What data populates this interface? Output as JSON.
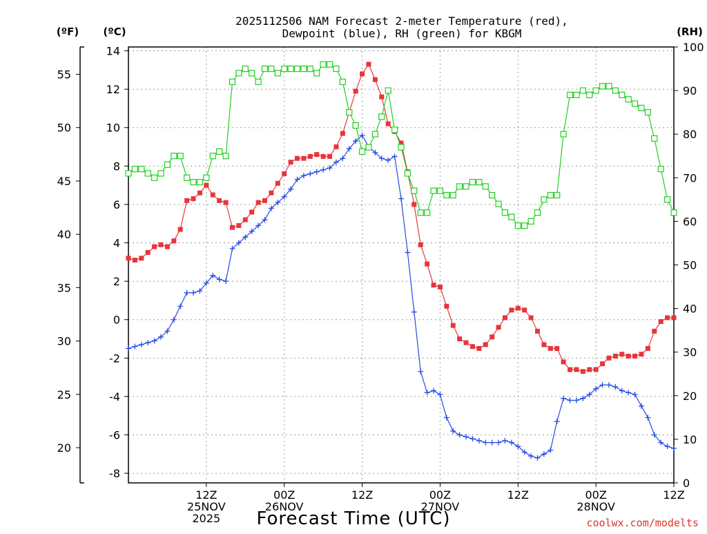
{
  "chart_data": {
    "type": "line",
    "title_line1": "2025112506 NAM Forecast 2-meter Temperature (red),",
    "title_line2": "Dewpoint (blue), RH (green) for KBGM",
    "unit_labels": {
      "fahrenheit": "(ºF)",
      "celsius": "(ºC)",
      "rh": "(RH)"
    },
    "xlabel": "Forecast Time (UTC)",
    "credit": "coolwx.com/modelts",
    "x_start": "2025-11-25 06Z",
    "x_tick_labels": [
      {
        "hour": 12,
        "lines": [
          "12Z",
          "25NOV",
          "2025"
        ]
      },
      {
        "hour": 24,
        "lines": [
          "00Z",
          "26NOV"
        ]
      },
      {
        "hour": 36,
        "lines": [
          "12Z"
        ]
      },
      {
        "hour": 48,
        "lines": [
          "00Z",
          "27NOV"
        ]
      },
      {
        "hour": 60,
        "lines": [
          "12Z"
        ]
      },
      {
        "hour": 72,
        "lines": [
          "00Z",
          "28NOV"
        ]
      },
      {
        "hour": 84,
        "lines": [
          "12Z"
        ]
      }
    ],
    "x_range_hours": [
      0,
      84
    ],
    "y_celsius": {
      "range": [
        -8.5,
        14.2
      ],
      "ticks": [
        -8,
        -6,
        -4,
        -2,
        0,
        2,
        4,
        6,
        8,
        10,
        12,
        14
      ]
    },
    "y_fahrenheit": {
      "ticks": [
        20,
        25,
        30,
        35,
        40,
        45,
        50,
        55
      ]
    },
    "y_rh": {
      "range": [
        0,
        100
      ],
      "ticks": [
        0,
        10,
        20,
        30,
        40,
        50,
        60,
        70,
        80,
        90,
        100
      ]
    },
    "grid": true,
    "series": [
      {
        "name": "Temperature",
        "color": "#e8353a",
        "marker": "filled-square",
        "axis": "celsius",
        "values": [
          3.2,
          3.1,
          3.2,
          3.5,
          3.8,
          3.9,
          3.8,
          4.1,
          4.7,
          6.2,
          6.3,
          6.6,
          7.0,
          6.5,
          6.2,
          6.1,
          4.8,
          4.9,
          5.2,
          5.6,
          6.1,
          6.2,
          6.6,
          7.1,
          7.6,
          8.2,
          8.4,
          8.4,
          8.5,
          8.6,
          8.5,
          8.5,
          9.0,
          9.7,
          10.8,
          11.9,
          12.8,
          13.3,
          12.5,
          11.6,
          10.2,
          9.8,
          9.2,
          7.7,
          6.0,
          3.9,
          2.9,
          1.8,
          1.7,
          0.7,
          -0.3,
          -1.0,
          -1.2,
          -1.4,
          -1.5,
          -1.3,
          -0.9,
          -0.4,
          0.1,
          0.5,
          0.6,
          0.5,
          0.1,
          -0.6,
          -1.3,
          -1.5,
          -1.5,
          -2.2,
          -2.6,
          -2.6,
          -2.7,
          -2.6,
          -2.6,
          -2.3,
          -2.0,
          -1.9,
          -1.8,
          -1.9,
          -1.9,
          -1.8,
          -1.5,
          -0.6,
          -0.1,
          0.1,
          0.1
        ]
      },
      {
        "name": "Dewpoint",
        "color": "#2449e3",
        "marker": "plus",
        "axis": "celsius",
        "values": [
          -1.5,
          -1.4,
          -1.3,
          -1.2,
          -1.1,
          -0.9,
          -0.6,
          0.0,
          0.7,
          1.4,
          1.4,
          1.5,
          1.9,
          2.3,
          2.1,
          2.0,
          3.7,
          4.0,
          4.3,
          4.6,
          4.9,
          5.2,
          5.8,
          6.1,
          6.4,
          6.8,
          7.3,
          7.5,
          7.6,
          7.7,
          7.8,
          7.9,
          8.2,
          8.4,
          8.9,
          9.3,
          9.6,
          9.0,
          8.7,
          8.4,
          8.3,
          8.5,
          6.3,
          3.5,
          0.4,
          -2.7,
          -3.8,
          -3.7,
          -3.9,
          -5.1,
          -5.8,
          -6.0,
          -6.1,
          -6.2,
          -6.3,
          -6.4,
          -6.4,
          -6.4,
          -6.3,
          -6.4,
          -6.6,
          -6.9,
          -7.1,
          -7.2,
          -7.0,
          -6.8,
          -5.3,
          -4.1,
          -4.2,
          -4.2,
          -4.1,
          -3.9,
          -3.6,
          -3.4,
          -3.4,
          -3.5,
          -3.7,
          -3.8,
          -3.9,
          -4.5,
          -5.1,
          -6.0,
          -6.4,
          -6.6,
          -6.7
        ]
      },
      {
        "name": "RH",
        "color": "#1fcf1f",
        "marker": "open-square",
        "axis": "rh",
        "values": [
          71,
          72,
          72,
          71,
          70,
          71,
          73,
          75,
          75,
          70,
          69,
          69,
          70,
          75,
          76,
          75,
          92,
          94,
          95,
          94,
          92,
          95,
          95,
          94,
          95,
          95,
          95,
          95,
          95,
          94,
          96,
          96,
          95,
          92,
          85,
          82,
          76,
          77,
          80,
          84,
          90,
          81,
          77,
          71,
          67,
          62,
          62,
          67,
          67,
          66,
          66,
          68,
          68,
          69,
          69,
          68,
          66,
          64,
          62,
          61,
          59,
          59,
          60,
          62,
          65,
          66,
          66,
          80,
          89,
          89,
          90,
          89,
          90,
          91,
          91,
          90,
          89,
          88,
          87,
          86,
          85,
          79,
          72,
          65,
          62
        ]
      }
    ]
  }
}
